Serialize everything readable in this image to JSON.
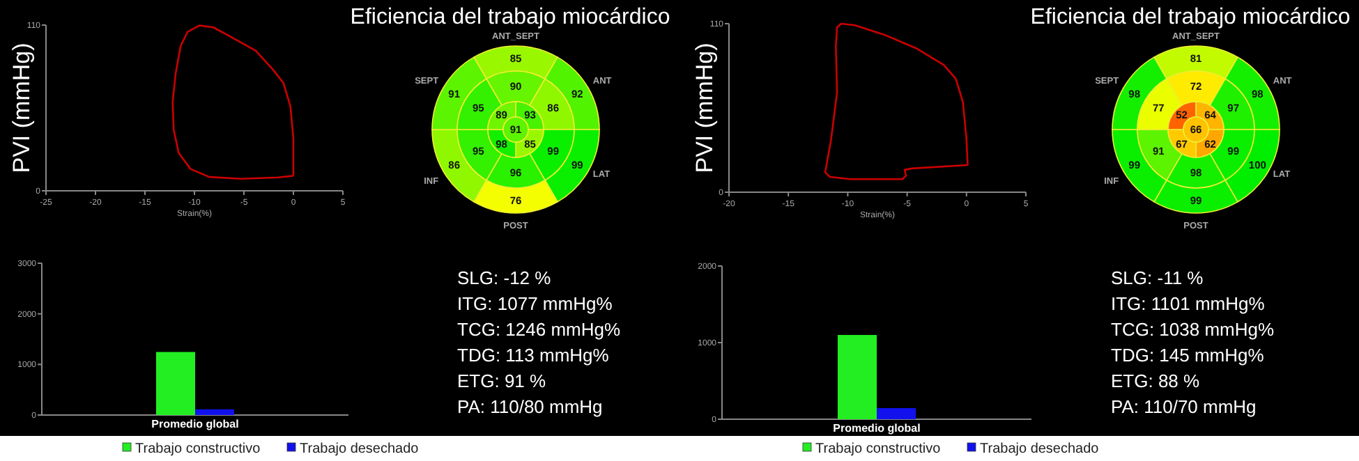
{
  "chart_data": [
    {
      "type": "line",
      "xlabel": "Strain(%)",
      "ylabel": "PVI (mmHg)",
      "xlim": [
        -25,
        5
      ],
      "xticks": [
        -25,
        -20,
        -15,
        -10,
        -5,
        0,
        5
      ],
      "ylim": [
        0,
        110
      ],
      "yticks": [
        0,
        110
      ]
    },
    {
      "type": "other",
      "title": "Eficiencia del trabajo miocárdico",
      "categories": [
        "ANT_SEPT",
        "ANT",
        "LAT",
        "POST",
        "INF",
        "SEPT"
      ],
      "annotations": [
        "85",
        "92",
        "99",
        "76",
        "86",
        "91",
        "90",
        "86",
        "99",
        "96",
        "95",
        "95",
        "93",
        "85",
        "98",
        "89",
        "91"
      ],
      "colors": [
        "#99f800",
        "#52f300",
        "#0aef00",
        "#f5fe00",
        "#8ff800",
        "#5cf400",
        "#66f500",
        "#8ff800",
        "#0aef00",
        "#29f100",
        "#33f100",
        "#33f100",
        "#47f300",
        "#99f800",
        "#14ef00",
        "#70f500",
        "#5cf400"
      ]
    },
    {
      "type": "line",
      "xlabel": "Strain(%)",
      "ylabel": "PVI (mmHg)",
      "xlim": [
        -20,
        5
      ],
      "xticks": [
        -20,
        -15,
        -10,
        -5,
        0,
        5
      ],
      "ylim": [
        0,
        110
      ],
      "yticks": [
        0,
        110
      ]
    },
    {
      "type": "other",
      "title": "Eficiencia del trabajo miocárdico",
      "categories": [
        "ANT_SEPT",
        "ANT",
        "LAT",
        "POST",
        "INF",
        "SEPT"
      ],
      "annotations": [
        "81",
        "98",
        "100",
        "99",
        "99",
        "98",
        "72",
        "97",
        "99",
        "98",
        "91",
        "77",
        "64",
        "62",
        "67",
        "52",
        "66"
      ],
      "colors": [
        "#c2fb00",
        "#14ef00",
        "#00ee00",
        "#0aef00",
        "#0aef00",
        "#14ef00",
        "#ffeb00",
        "#1ff000",
        "#0aef00",
        "#14ef00",
        "#5cf400",
        "#ebfe00",
        "#ffb400",
        "#ffa700",
        "#ffc900",
        "#ff6300",
        "#ffc200"
      ]
    },
    {
      "type": "bar",
      "categories": [
        "Promedio global"
      ],
      "ylim": [
        0,
        3000
      ],
      "yticks": [
        0,
        1000,
        2000,
        3000
      ],
      "legend": "bottom",
      "series": [
        {
          "name": "Trabajo constructivo",
          "color": "#22ee22",
          "values": [
            1246
          ]
        },
        {
          "name": "Trabajo desechado",
          "color": "#1111ee",
          "values": [
            113
          ]
        }
      ]
    },
    {
      "type": "other",
      "annotations": [
        "SLG: -12 %",
        "ITG: 1077 mmHg%",
        "TCG: 1246 mmHg%",
        "TDG: 113 mmHg%",
        "ETG: 91 %",
        "PA: 110/80 mmHg"
      ]
    },
    {
      "type": "bar",
      "categories": [
        "Promedio global"
      ],
      "ylim": [
        0,
        2000
      ],
      "yticks": [
        0,
        1000,
        2000
      ],
      "legend": "bottom",
      "series": [
        {
          "name": "Trabajo constructivo",
          "color": "#22ee22",
          "values": [
            1100
          ]
        },
        {
          "name": "Trabajo desechado",
          "color": "#1111ee",
          "values": [
            145
          ]
        }
      ]
    },
    {
      "type": "other",
      "annotations": [
        "SLG: -11 %",
        "ITG: 1101 mmHg%",
        "TCG: 1038 mmHg%",
        "TDG: 145 mmHg%",
        "ETG: 88 %",
        "PA: 110/70 mmHg"
      ]
    }
  ]
}
